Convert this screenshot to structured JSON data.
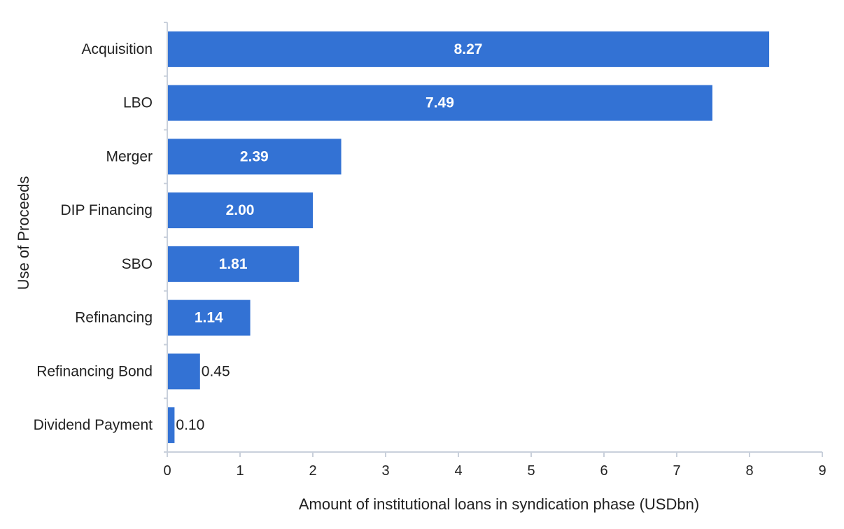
{
  "chart_data": {
    "type": "bar",
    "orientation": "horizontal",
    "categories": [
      "Acquisition",
      "LBO",
      "Merger",
      "DIP Financing",
      "SBO",
      "Refinancing",
      "Refinancing Bond",
      "Dividend Payment"
    ],
    "values": [
      8.27,
      7.49,
      2.39,
      2.0,
      1.81,
      1.14,
      0.45,
      0.1
    ],
    "value_labels": [
      "8.27",
      "7.49",
      "2.39",
      "2.00",
      "1.81",
      "1.14",
      "0.45",
      "0.10"
    ],
    "xlabel": "Amount of  institutional loans in syndication phase (USDbn)",
    "ylabel": "Use of Proceeds",
    "xlim": [
      0,
      9
    ],
    "xticks": [
      "0",
      "1",
      "2",
      "3",
      "4",
      "5",
      "6",
      "7",
      "8",
      "9"
    ],
    "grid": false,
    "legend": "none",
    "bar_color": "#3372D4"
  }
}
